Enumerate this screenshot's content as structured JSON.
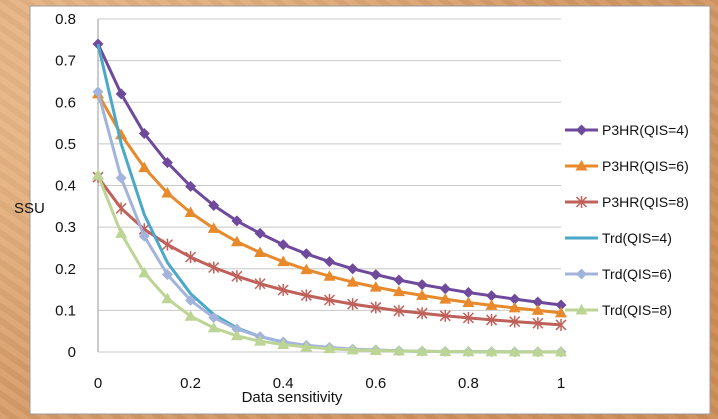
{
  "chart_data": {
    "type": "line",
    "xlabel": "Data sensitivity",
    "ylabel": "SSU",
    "xlim": [
      0,
      1
    ],
    "ylim": [
      0,
      0.8
    ],
    "x_ticks": [
      "0",
      "0.2",
      "0.4",
      "0.6",
      "0.8",
      "1"
    ],
    "y_ticks": [
      "0",
      "0.1",
      "0.2",
      "0.3",
      "0.4",
      "0.5",
      "0.6",
      "0.7",
      "0.8"
    ],
    "grid": "horizontal",
    "legend_position": "right",
    "x": [
      0,
      0.05,
      0.1,
      0.15,
      0.2,
      0.25,
      0.3,
      0.35,
      0.4,
      0.45,
      0.5,
      0.55,
      0.6,
      0.65,
      0.7,
      0.75,
      0.8,
      0.85,
      0.9,
      0.95,
      1
    ],
    "series": [
      {
        "name": "P3HR(QIS=4)",
        "color": "#6f4a9c",
        "marker": "diamond",
        "values": [
          0.74,
          0.62,
          0.525,
          0.455,
          0.398,
          0.352,
          0.315,
          0.285,
          0.258,
          0.236,
          0.217,
          0.2,
          0.186,
          0.173,
          0.162,
          0.152,
          0.143,
          0.135,
          0.127,
          0.12,
          0.113
        ]
      },
      {
        "name": "P3HR(QIS=6)",
        "color": "#e8892c",
        "marker": "triangle",
        "values": [
          0.62,
          0.522,
          0.443,
          0.382,
          0.335,
          0.297,
          0.265,
          0.239,
          0.217,
          0.198,
          0.182,
          0.168,
          0.156,
          0.145,
          0.136,
          0.127,
          0.119,
          0.112,
          0.106,
          0.1,
          0.094
        ]
      },
      {
        "name": "P3HR(QIS=8)",
        "color": "#c0605a",
        "marker": "star",
        "values": [
          0.42,
          0.345,
          0.295,
          0.258,
          0.228,
          0.203,
          0.182,
          0.164,
          0.149,
          0.136,
          0.125,
          0.115,
          0.107,
          0.099,
          0.093,
          0.087,
          0.082,
          0.077,
          0.073,
          0.069,
          0.065
        ]
      },
      {
        "name": "Trd(QIS=4)",
        "color": "#4aa8c8",
        "marker": "none",
        "values": [
          0.74,
          0.5,
          0.33,
          0.215,
          0.14,
          0.09,
          0.058,
          0.037,
          0.024,
          0.015,
          0.01,
          0.006,
          0.004,
          0.0025,
          0.0015,
          0.001,
          0.0006,
          0.0004,
          0.0002,
          0.0001,
          0.0001
        ]
      },
      {
        "name": "Trd(QIS=6)",
        "color": "#a3b4dc",
        "marker": "diamond",
        "values": [
          0.625,
          0.418,
          0.278,
          0.186,
          0.124,
          0.083,
          0.055,
          0.037,
          0.024,
          0.016,
          0.011,
          0.007,
          0.005,
          0.003,
          0.002,
          0.0013,
          0.0009,
          0.0006,
          0.0004,
          0.0003,
          0.0002
        ]
      },
      {
        "name": "Trd(QIS=8)",
        "color": "#bcd494",
        "marker": "triangle",
        "values": [
          0.425,
          0.285,
          0.19,
          0.128,
          0.086,
          0.058,
          0.039,
          0.026,
          0.018,
          0.012,
          0.008,
          0.005,
          0.0035,
          0.0024,
          0.0016,
          0.0011,
          0.0007,
          0.0005,
          0.0003,
          0.0002,
          0.0002
        ]
      }
    ]
  }
}
